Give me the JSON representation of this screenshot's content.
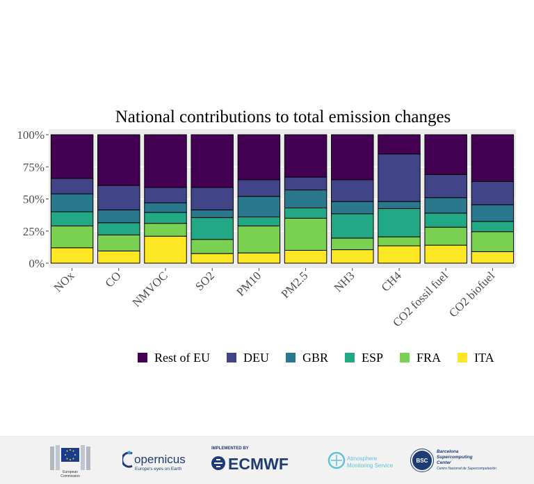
{
  "chart_data": {
    "type": "bar",
    "stacked": true,
    "title": "National contributions to total emission changes",
    "categories": [
      "NOx",
      "CO",
      "NMVOC",
      "SO2",
      "PM10",
      "PM2.5",
      "NH3",
      "CH4",
      "CO2 fossil fuel",
      "CO2 biofuel"
    ],
    "y_ticks": [
      "0%",
      "25%",
      "50%",
      "75%",
      "100%"
    ],
    "ylim": [
      0,
      100
    ],
    "grid": true,
    "legend_position": "bottom",
    "series": [
      {
        "name": "ITA",
        "color": "#fde725",
        "values": [
          12,
          9.5,
          21,
          7.5,
          8,
          10,
          10.5,
          13.5,
          14,
          9
        ]
      },
      {
        "name": "FRA",
        "color": "#7ad151",
        "values": [
          17,
          12.5,
          10,
          11,
          21,
          25,
          9,
          7,
          14,
          15.5
        ]
      },
      {
        "name": "ESP",
        "color": "#22a884",
        "values": [
          11,
          9.5,
          8.5,
          17,
          7,
          8,
          19,
          22,
          11,
          8
        ]
      },
      {
        "name": "GBR",
        "color": "#2a788e",
        "values": [
          14,
          10,
          7.5,
          6,
          16,
          14,
          9.5,
          5.5,
          12,
          13
        ]
      },
      {
        "name": "DEU",
        "color": "#414487",
        "values": [
          12,
          19,
          12,
          17.5,
          13,
          10,
          17,
          37,
          18,
          18
        ]
      },
      {
        "name": "Rest of EU",
        "color": "#440154",
        "values": [
          34,
          39.5,
          41,
          41,
          35,
          33,
          35,
          15,
          31,
          36.5
        ]
      }
    ],
    "legend_order": [
      "Rest of EU",
      "DEU",
      "GBR",
      "ESP",
      "FRA",
      "ITA"
    ]
  },
  "footer": {
    "ec": {
      "line1": "European",
      "line2": "Commission"
    },
    "copernicus": {
      "name": "opernicus",
      "tagline": "Europe's eyes on Earth"
    },
    "ecmwf": {
      "implemented": "IMPLEMENTED BY",
      "name": "ECMWF"
    },
    "cams": {
      "line1": "Atmosphere",
      "line2": "Monitoring Service"
    },
    "bsc": {
      "badge": "BSC",
      "line1": "Barcelona",
      "line2": "Supercomputing",
      "line3": "Center",
      "line4": "Centro Nacional de Supercomputación"
    }
  }
}
